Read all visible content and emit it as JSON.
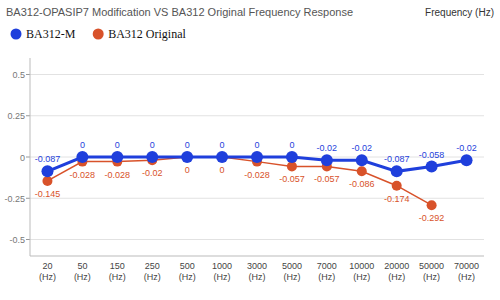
{
  "chart_data": {
    "type": "line",
    "title": "BA312-OPASIP7 Modification VS BA312 Original Frequency Response",
    "x_label": "Frequency (Hz)",
    "categories": [
      "20(Hz)",
      "50(Hz)",
      "150(Hz)",
      "250(Hz)",
      "500(Hz)",
      "1000(Hz)",
      "3000(Hz)",
      "5000(Hz)",
      "7000(Hz)",
      "10000(Hz)",
      "20000(Hz)",
      "50000(Hz)",
      "70000(Hz)"
    ],
    "series": [
      {
        "name": "BA312-M",
        "color": "#1f3fdc",
        "marker": "circle",
        "values": [
          -0.087,
          0,
          0,
          0,
          0,
          0,
          0,
          0,
          -0.02,
          -0.02,
          -0.087,
          -0.058,
          -0.02
        ]
      },
      {
        "name": "BA312 Original",
        "color": "#d8522a",
        "marker": "circle",
        "values": [
          -0.145,
          -0.028,
          -0.028,
          -0.02,
          0,
          0,
          -0.028,
          -0.057,
          -0.057,
          -0.086,
          -0.174,
          -0.292,
          null
        ]
      }
    ],
    "ylim": [
      -0.6,
      0.6
    ],
    "yticks": [
      0.5,
      0.25,
      0,
      -0.25,
      -0.5
    ],
    "grid": true,
    "legend": "top-left",
    "data_labels": true
  }
}
